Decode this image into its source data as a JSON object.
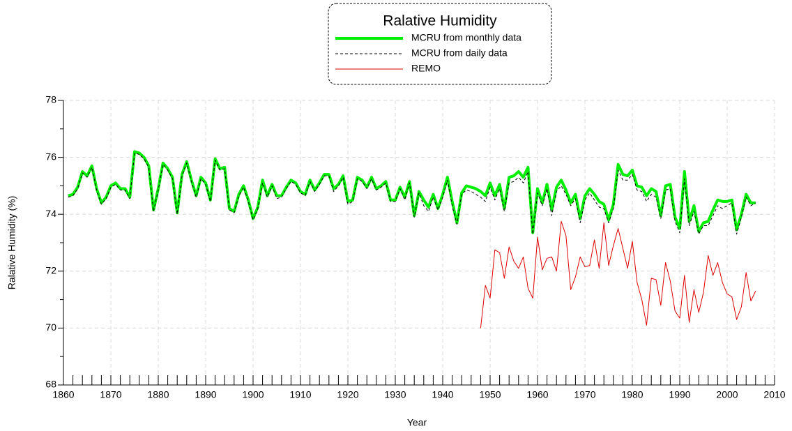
{
  "chart_data": {
    "type": "line",
    "title": "Ralative Humidity",
    "xlabel": "Year",
    "ylabel": "Ralative Humidity (%)",
    "xlim": [
      1860,
      2010
    ],
    "ylim": [
      68,
      78
    ],
    "xticks": [
      1860,
      1870,
      1880,
      1890,
      1900,
      1910,
      1920,
      1930,
      1940,
      1950,
      1960,
      1970,
      1980,
      1990,
      2000,
      2010
    ],
    "yticks": [
      68,
      70,
      72,
      74,
      76,
      78
    ],
    "grid": true,
    "legend": "top-center",
    "x": [
      1861,
      1862,
      1863,
      1864,
      1865,
      1866,
      1867,
      1868,
      1869,
      1870,
      1871,
      1872,
      1873,
      1874,
      1875,
      1876,
      1877,
      1878,
      1879,
      1880,
      1881,
      1882,
      1883,
      1884,
      1885,
      1886,
      1887,
      1888,
      1889,
      1890,
      1891,
      1892,
      1893,
      1894,
      1895,
      1896,
      1897,
      1898,
      1899,
      1900,
      1901,
      1902,
      1903,
      1904,
      1905,
      1906,
      1907,
      1908,
      1909,
      1910,
      1911,
      1912,
      1913,
      1914,
      1915,
      1916,
      1917,
      1918,
      1919,
      1920,
      1921,
      1922,
      1923,
      1924,
      1925,
      1926,
      1927,
      1928,
      1929,
      1930,
      1931,
      1932,
      1933,
      1934,
      1935,
      1936,
      1937,
      1938,
      1939,
      1940,
      1941,
      1942,
      1943,
      1944,
      1945,
      1946,
      1947,
      1948,
      1949,
      1950,
      1951,
      1952,
      1953,
      1954,
      1955,
      1956,
      1957,
      1958,
      1959,
      1960,
      1961,
      1962,
      1963,
      1964,
      1965,
      1966,
      1967,
      1968,
      1969,
      1970,
      1971,
      1972,
      1973,
      1974,
      1975,
      1976,
      1977,
      1978,
      1979,
      1980,
      1981,
      1982,
      1983,
      1984,
      1985,
      1986,
      1987,
      1988,
      1989,
      1990,
      1991,
      1992,
      1993,
      1994,
      1995,
      1996,
      1997,
      1998,
      1999,
      2000,
      2001,
      2002,
      2003,
      2004,
      2005,
      2006
    ],
    "series": [
      {
        "name": "MCRU from monthly data",
        "color": "#00ee00",
        "width": 4,
        "dash": "none",
        "values": [
          74.65,
          74.7,
          74.95,
          75.5,
          75.35,
          75.7,
          74.9,
          74.4,
          74.6,
          75.0,
          75.1,
          74.9,
          74.9,
          74.6,
          76.2,
          76.15,
          76.0,
          75.7,
          74.15,
          74.9,
          75.8,
          75.6,
          75.3,
          74.05,
          75.4,
          75.85,
          75.2,
          74.65,
          75.3,
          75.1,
          74.5,
          75.95,
          75.6,
          75.65,
          74.2,
          74.1,
          74.7,
          75.0,
          74.5,
          73.85,
          74.25,
          75.2,
          74.65,
          75.05,
          74.65,
          74.65,
          74.95,
          75.2,
          75.1,
          74.8,
          74.7,
          75.2,
          74.85,
          75.1,
          75.4,
          75.4,
          74.9,
          75.05,
          75.35,
          74.45,
          74.5,
          75.3,
          75.2,
          74.95,
          75.3,
          74.9,
          75.0,
          75.15,
          74.5,
          74.5,
          74.95,
          74.6,
          75.15,
          73.95,
          74.8,
          74.5,
          74.25,
          74.7,
          74.2,
          74.7,
          75.3,
          74.45,
          73.7,
          74.75,
          75.0,
          74.95,
          74.9,
          74.8,
          74.65,
          75.1,
          74.65,
          75.05,
          74.2,
          75.3,
          75.35,
          75.5,
          75.3,
          75.65,
          73.35,
          74.9,
          74.4,
          75.05,
          74.15,
          74.95,
          75.2,
          74.85,
          74.4,
          74.7,
          73.85,
          74.65,
          74.9,
          74.7,
          74.45,
          74.35,
          73.8,
          74.35,
          75.75,
          75.4,
          75.35,
          75.55,
          75.0,
          74.95,
          74.65,
          74.9,
          74.8,
          73.95,
          75.0,
          75.05,
          73.9,
          73.5,
          75.5,
          73.75,
          74.3,
          73.4,
          73.7,
          73.75,
          74.15,
          74.5,
          74.45,
          74.45,
          74.5,
          73.45,
          74.0,
          74.7,
          74.4,
          74.4
        ]
      },
      {
        "name": "MCRU from daily data",
        "color": "#000000",
        "width": 1,
        "dash": "4,3",
        "values": [
          74.6,
          74.65,
          74.9,
          75.45,
          75.3,
          75.65,
          74.85,
          74.35,
          74.55,
          74.95,
          75.05,
          74.85,
          74.85,
          74.55,
          76.15,
          76.1,
          75.95,
          75.65,
          74.1,
          74.85,
          75.75,
          75.55,
          75.25,
          74.0,
          75.35,
          75.8,
          75.15,
          74.6,
          75.25,
          75.05,
          74.45,
          75.9,
          75.55,
          75.6,
          74.15,
          74.05,
          74.65,
          74.95,
          74.45,
          73.8,
          74.2,
          75.1,
          74.6,
          75.0,
          74.55,
          74.6,
          74.9,
          75.15,
          75.05,
          74.75,
          74.65,
          75.15,
          74.8,
          75.05,
          75.35,
          75.35,
          74.8,
          75.0,
          75.3,
          74.35,
          74.45,
          75.25,
          75.15,
          74.9,
          75.25,
          74.85,
          74.95,
          75.1,
          74.45,
          74.45,
          74.9,
          74.5,
          75.1,
          73.9,
          74.75,
          74.3,
          74.1,
          74.6,
          74.15,
          74.6,
          75.2,
          74.3,
          73.65,
          74.7,
          74.85,
          74.8,
          74.7,
          74.6,
          74.45,
          74.95,
          74.5,
          74.9,
          74.1,
          75.1,
          75.15,
          75.3,
          75.1,
          75.5,
          73.3,
          74.75,
          74.3,
          74.9,
          73.95,
          74.8,
          75.0,
          74.7,
          74.3,
          74.55,
          73.7,
          74.5,
          74.75,
          74.5,
          74.25,
          74.2,
          73.7,
          74.2,
          75.55,
          75.2,
          75.2,
          75.4,
          74.85,
          74.8,
          74.45,
          74.7,
          74.6,
          73.85,
          74.85,
          74.9,
          73.75,
          73.35,
          75.25,
          73.6,
          74.1,
          73.3,
          73.6,
          73.6,
          73.95,
          74.3,
          74.2,
          74.3,
          74.4,
          73.3,
          73.9,
          74.6,
          74.3,
          74.4
        ]
      },
      {
        "name": "REMO",
        "color": "#dd0000",
        "width": 1,
        "dash": "none",
        "values": [
          null,
          null,
          null,
          null,
          null,
          null,
          null,
          null,
          null,
          null,
          null,
          null,
          null,
          null,
          null,
          null,
          null,
          null,
          null,
          null,
          null,
          null,
          null,
          null,
          null,
          null,
          null,
          null,
          null,
          null,
          null,
          null,
          null,
          null,
          null,
          null,
          null,
          null,
          null,
          null,
          null,
          null,
          null,
          null,
          null,
          null,
          null,
          null,
          null,
          null,
          null,
          null,
          null,
          null,
          null,
          null,
          null,
          null,
          null,
          null,
          null,
          null,
          null,
          null,
          null,
          null,
          null,
          null,
          null,
          null,
          null,
          null,
          null,
          null,
          null,
          null,
          null,
          null,
          null,
          null,
          null,
          null,
          null,
          null,
          null,
          null,
          null,
          70.0,
          71.5,
          71.05,
          72.75,
          72.65,
          71.75,
          72.85,
          72.35,
          72.1,
          72.5,
          71.4,
          71.05,
          73.2,
          72.05,
          72.45,
          72.5,
          72.0,
          73.75,
          73.25,
          71.35,
          71.8,
          72.5,
          72.15,
          72.2,
          73.1,
          72.1,
          73.7,
          72.2,
          72.9,
          73.5,
          72.8,
          72.1,
          73.05,
          71.6,
          71.0,
          70.1,
          71.75,
          71.7,
          70.8,
          72.3,
          71.65,
          70.6,
          70.35,
          71.85,
          70.2,
          71.35,
          70.55,
          71.25,
          72.55,
          71.85,
          72.3,
          71.6,
          71.2,
          71.1,
          70.3,
          70.75,
          71.95,
          70.95,
          71.3
        ]
      }
    ]
  }
}
